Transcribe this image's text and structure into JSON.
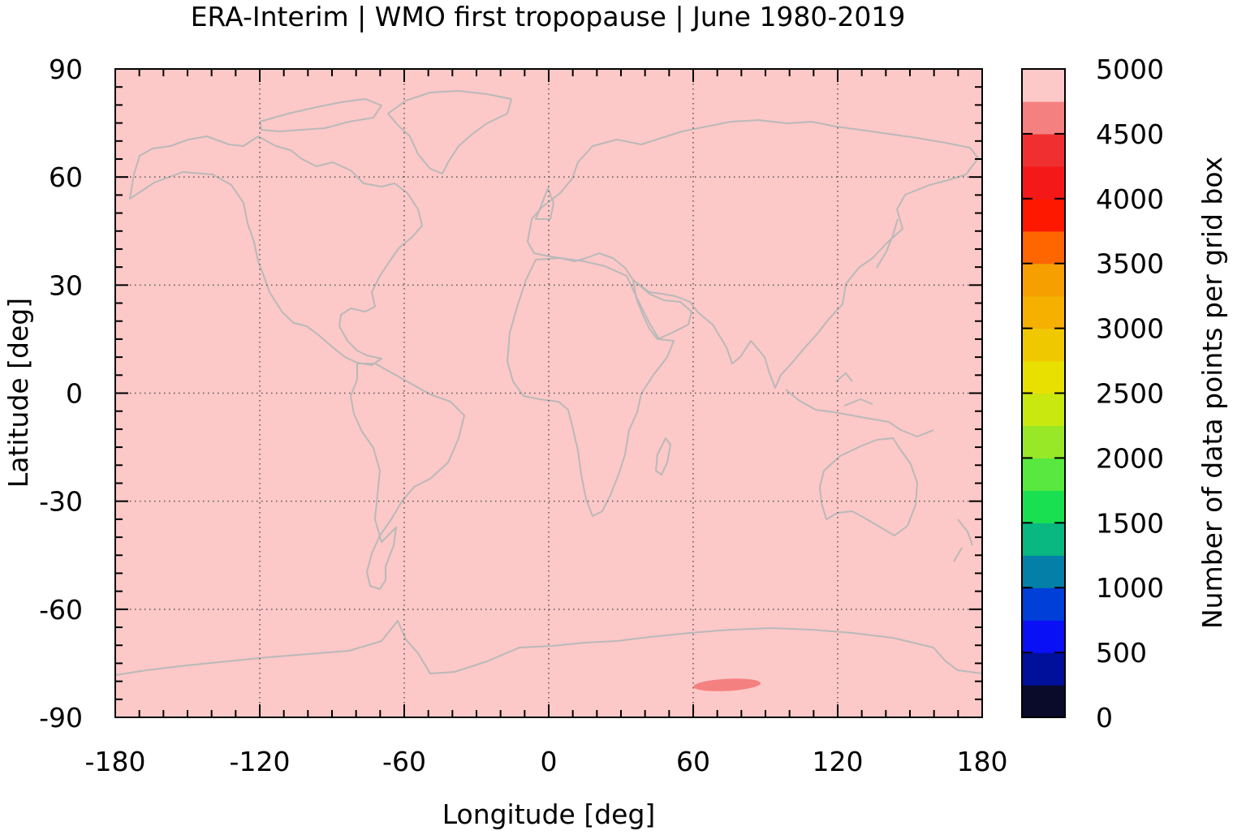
{
  "chart_data": {
    "type": "heatmap",
    "title": "ERA-Interim | WMO first tropopause | June 1980-2019",
    "xlabel": "Longitude [deg]",
    "ylabel": "Latitude [deg]",
    "xlim": [
      -180,
      180
    ],
    "ylim": [
      -90,
      90
    ],
    "x_ticks": [
      -180,
      -120,
      -60,
      0,
      60,
      120,
      180
    ],
    "x_tick_labels": [
      "-180",
      "-120",
      "-60",
      "0",
      "60",
      "120",
      "180"
    ],
    "y_ticks": [
      90,
      60,
      30,
      0,
      -30,
      -60,
      -90
    ],
    "y_tick_labels": [
      "90",
      "60",
      "30",
      "0",
      "-30",
      "-60",
      "-90"
    ],
    "grid": true,
    "field": {
      "background_value": 5000,
      "background_color": "#fdc8c8",
      "anomalies": [
        {
          "lon_range": [
            60,
            88
          ],
          "lat_range": [
            -82,
            -80
          ],
          "value_bin": [
            4500,
            4800
          ],
          "color": "#f58080"
        }
      ]
    },
    "overlay": "coastlines",
    "colorbar": {
      "label": "Number of data points per grid box",
      "range": [
        0,
        5000
      ],
      "ticks": [
        5000,
        4500,
        4000,
        3500,
        3000,
        2500,
        2000,
        1500,
        1000,
        500,
        0
      ],
      "tick_labels": [
        "5000",
        "4500",
        "4000",
        "3500",
        "3000",
        "2500",
        "2000",
        "1500",
        "1000",
        "500",
        "0"
      ],
      "colors": [
        "#0a0a2a",
        "#00109a",
        "#0a10f5",
        "#0040d8",
        "#0480a8",
        "#08b880",
        "#18e050",
        "#58e840",
        "#98e828",
        "#c8e810",
        "#e8e000",
        "#f0c800",
        "#f5b000",
        "#f5a000",
        "#ff6600",
        "#ff1800",
        "#f51818",
        "#f03030",
        "#f58080",
        "#fdc8c8"
      ]
    }
  }
}
